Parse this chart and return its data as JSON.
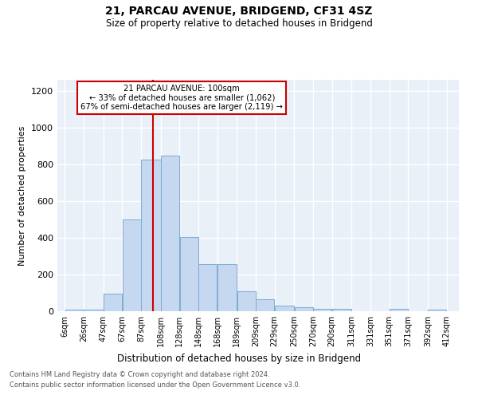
{
  "title1": "21, PARCAU AVENUE, BRIDGEND, CF31 4SZ",
  "title2": "Size of property relative to detached houses in Bridgend",
  "xlabel": "Distribution of detached houses by size in Bridgend",
  "ylabel": "Number of detached properties",
  "annotation_line1": "21 PARCAU AVENUE: 100sqm",
  "annotation_line2": "← 33% of detached houses are smaller (1,062)",
  "annotation_line3": "67% of semi-detached houses are larger (2,119) →",
  "property_size": 100,
  "bar_left_edges": [
    6,
    26,
    47,
    67,
    87,
    108,
    128,
    148,
    168,
    189,
    209,
    229,
    250,
    270,
    290,
    311,
    331,
    351,
    371,
    392
  ],
  "bar_heights": [
    10,
    10,
    95,
    500,
    825,
    848,
    405,
    255,
    255,
    110,
    65,
    30,
    20,
    12,
    12,
    0,
    0,
    12,
    0,
    10
  ],
  "bar_widths": [
    20,
    21,
    20,
    20,
    21,
    20,
    20,
    20,
    21,
    20,
    20,
    21,
    20,
    20,
    21,
    20,
    20,
    20,
    21,
    20
  ],
  "bar_color": "#c5d8f0",
  "bar_edgecolor": "#7aadd4",
  "vline_x": 100,
  "vline_color": "#cc0000",
  "tick_labels": [
    "6sqm",
    "26sqm",
    "47sqm",
    "67sqm",
    "87sqm",
    "108sqm",
    "128sqm",
    "148sqm",
    "168sqm",
    "189sqm",
    "209sqm",
    "229sqm",
    "250sqm",
    "270sqm",
    "290sqm",
    "311sqm",
    "331sqm",
    "351sqm",
    "371sqm",
    "392sqm",
    "412sqm"
  ],
  "tick_positions": [
    6,
    26,
    47,
    67,
    87,
    108,
    128,
    148,
    168,
    189,
    209,
    229,
    250,
    270,
    290,
    311,
    331,
    351,
    371,
    392,
    412
  ],
  "ylim": [
    0,
    1260
  ],
  "xlim": [
    -2,
    425
  ],
  "yticks": [
    0,
    200,
    400,
    600,
    800,
    1000,
    1200
  ],
  "bg_color": "#eaf0f8",
  "grid_color": "#ffffff",
  "footer1": "Contains HM Land Registry data © Crown copyright and database right 2024.",
  "footer2": "Contains public sector information licensed under the Open Government Licence v3.0."
}
